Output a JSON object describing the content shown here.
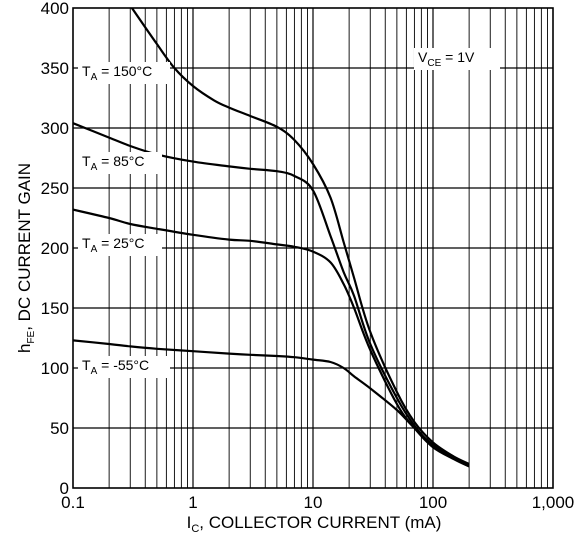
{
  "chart_data": {
    "type": "line",
    "title": "",
    "xlabel": {
      "main": "I",
      "sub": "C",
      "rest": ", COLLECTOR CURRENT (mA)"
    },
    "ylabel": {
      "main": "h",
      "sub": "FE",
      "rest": ", DC CURRENT GAIN"
    },
    "xscale": "log",
    "xlim": [
      0.1,
      1000
    ],
    "ylim": [
      0,
      400
    ],
    "grid": true,
    "xticks": [
      0.1,
      1,
      10,
      100,
      1000
    ],
    "xtick_labels": [
      "0.1",
      "1",
      "10",
      "100",
      "1,000"
    ],
    "yticks": [
      0,
      50,
      100,
      150,
      200,
      250,
      300,
      350,
      400
    ],
    "ytick_labels": [
      "0",
      "50",
      "100",
      "150",
      "200",
      "250",
      "300",
      "350",
      "400"
    ],
    "condition": {
      "main": "V",
      "sub": "CE",
      "rest": " = 1V"
    },
    "series": [
      {
        "name": "T_A = 150°C",
        "label": {
          "main": "T",
          "sub": "A",
          "rest": " = 150°C"
        },
        "x": [
          0.3,
          0.5,
          0.7,
          1,
          1.5,
          2,
          3,
          5,
          7,
          10,
          14,
          18,
          22,
          30,
          50,
          70,
          100,
          150,
          200
        ],
        "y": [
          402,
          370,
          350,
          335,
          323,
          317,
          310,
          301,
          290,
          270,
          242,
          205,
          175,
          130,
          80,
          55,
          38,
          26,
          19
        ]
      },
      {
        "name": "T_A = 85°C",
        "label": {
          "main": "T",
          "sub": "A",
          "rest": " = 85°C"
        },
        "x": [
          0.1,
          0.2,
          0.3,
          0.5,
          1,
          2,
          3,
          5,
          7,
          10,
          14,
          18,
          22,
          30,
          50,
          70,
          100,
          150,
          200
        ],
        "y": [
          304,
          292,
          285,
          278,
          272,
          268,
          266,
          264,
          260,
          248,
          210,
          180,
          160,
          120,
          75,
          52,
          35,
          24,
          18
        ]
      },
      {
        "name": "T_A = 25°C",
        "label": {
          "main": "T",
          "sub": "A",
          "rest": " = 25°C"
        },
        "x": [
          0.1,
          0.2,
          0.3,
          0.5,
          1,
          2,
          3,
          5,
          7,
          10,
          14,
          18,
          22,
          30,
          50,
          70,
          100,
          150,
          200
        ],
        "y": [
          232,
          225,
          220,
          216,
          211,
          207,
          206,
          203,
          201,
          197,
          188,
          170,
          150,
          115,
          70,
          50,
          34,
          24,
          18
        ]
      },
      {
        "name": "T_A = -55°C",
        "label": {
          "main": "T",
          "sub": "A",
          "rest": " = -55°C"
        },
        "x": [
          0.1,
          0.2,
          0.3,
          0.5,
          1,
          2,
          3,
          5,
          7,
          10,
          14,
          18,
          22,
          30,
          50,
          70,
          100,
          150,
          200
        ],
        "y": [
          123,
          120,
          118,
          116,
          114,
          112,
          111,
          110,
          109,
          107,
          105,
          100,
          93,
          83,
          65,
          50,
          36,
          26,
          20
        ]
      }
    ]
  }
}
